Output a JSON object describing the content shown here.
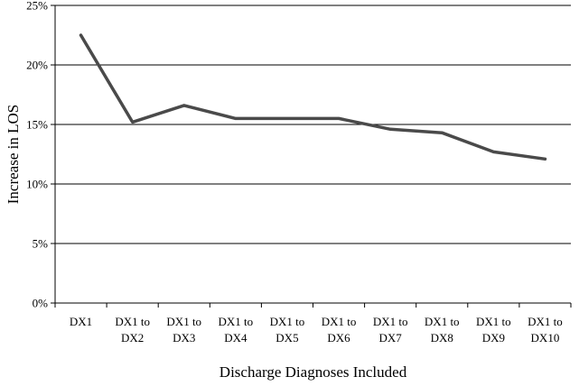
{
  "chart_data": {
    "type": "line",
    "xlabel": "Discharge Diagnoses Included",
    "ylabel": "Increase in LOS",
    "categories": [
      [
        "DX1"
      ],
      [
        "DX1 to",
        "DX2"
      ],
      [
        "DX1 to",
        "DX3"
      ],
      [
        "DX1 to",
        "DX4"
      ],
      [
        "DX1 to",
        "DX5"
      ],
      [
        "DX1 to",
        "DX6"
      ],
      [
        "DX1 to",
        "DX7"
      ],
      [
        "DX1 to",
        "DX8"
      ],
      [
        "DX1 to",
        "DX9"
      ],
      [
        "DX1 to",
        "DX10"
      ]
    ],
    "series": [
      {
        "values": [
          22.5,
          15.2,
          16.6,
          15.5,
          15.5,
          15.5,
          14.6,
          14.3,
          12.7,
          12.1
        ]
      }
    ],
    "ylim": [
      0,
      25
    ],
    "yticks": [
      0,
      5,
      10,
      15,
      20,
      25
    ],
    "ytick_labels": [
      "0%",
      "5%",
      "10%",
      "15%",
      "20%",
      "25%"
    ],
    "grid": true,
    "legend": "none",
    "line_color": "#4a4a4a"
  }
}
